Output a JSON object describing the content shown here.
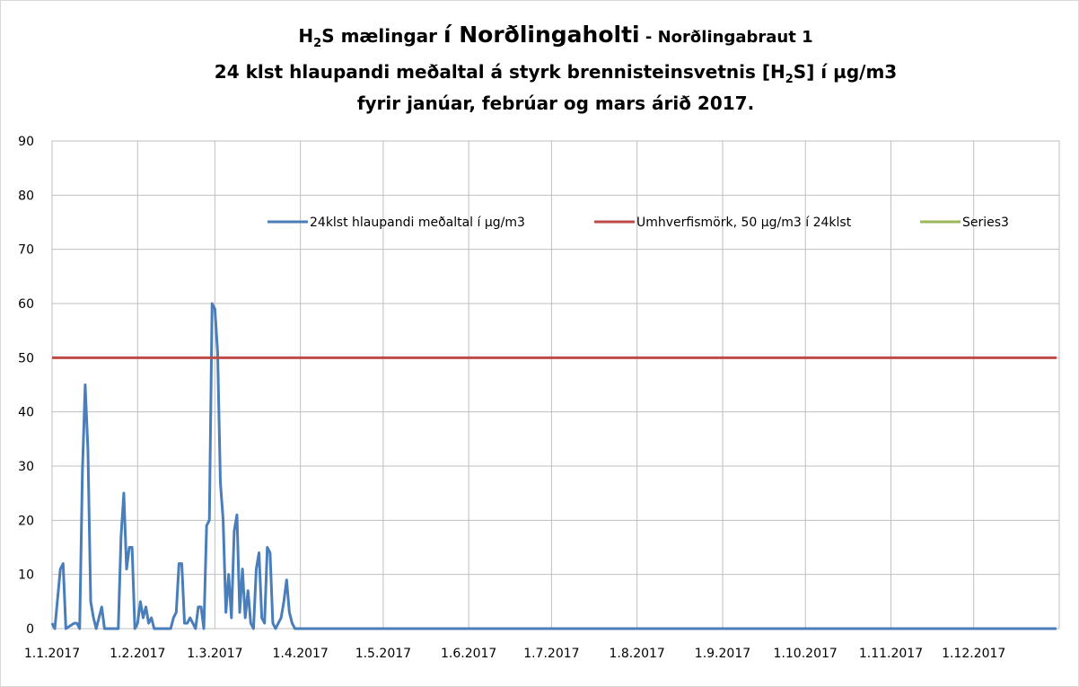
{
  "chart_data": {
    "type": "line",
    "title": [
      [
        {
          "text": "H"
        },
        {
          "text": "2",
          "sub": true
        },
        {
          "text": "S mælingar "
        },
        {
          "text": "í Norðlingaholti"
        },
        {
          "text": " - Norðlingabraut 1"
        }
      ],
      [
        {
          "text": "24 klst hlaupandi meðaltal á styrk brennisteinsvetnis [H"
        },
        {
          "text": "2",
          "sub": true
        },
        {
          "text": "S] í µg/m3"
        }
      ],
      [
        {
          "text": "fyrir janúar, febrúar og mars árið 2017."
        }
      ]
    ],
    "xlim": [
      "1.1.2017",
      "31.12.2017"
    ],
    "xticks": [
      "1.1.2017",
      "1.2.2017",
      "1.3.2017",
      "1.4.2017",
      "1.5.2017",
      "1.6.2017",
      "1.7.2017",
      "1.8.2017",
      "1.9.2017",
      "1.10.2017",
      "1.11.2017",
      "1.12.2017"
    ],
    "ylim": [
      0,
      90
    ],
    "yticks": [
      0,
      10,
      20,
      30,
      40,
      50,
      60,
      70,
      80,
      90
    ],
    "grid": true,
    "legend": "top",
    "series": [
      {
        "name": "24klst hlaupandi meðaltal í µg/m3",
        "color": "#4a7ebb",
        "x": [
          "1.1.2017",
          "2.1.2017",
          "4.1.2017",
          "5.1.2017",
          "6.1.2017",
          "9.1.2017",
          "10.1.2017",
          "11.1.2017",
          "12.1.2017",
          "13.1.2017",
          "14.1.2017",
          "15.1.2017",
          "16.1.2017",
          "17.1.2017",
          "18.1.2017",
          "19.1.2017",
          "20.1.2017",
          "25.1.2017",
          "26.1.2017",
          "27.1.2017",
          "28.1.2017",
          "29.1.2017",
          "30.1.2017",
          "31.1.2017",
          "1.2.2017",
          "2.2.2017",
          "3.2.2017",
          "4.2.2017",
          "5.2.2017",
          "6.2.2017",
          "7.2.2017",
          "13.2.2017",
          "14.2.2017",
          "15.2.2017",
          "16.2.2017",
          "17.2.2017",
          "18.2.2017",
          "19.2.2017",
          "20.2.2017",
          "21.2.2017",
          "22.2.2017",
          "23.2.2017",
          "24.2.2017",
          "25.2.2017",
          "26.2.2017",
          "27.2.2017",
          "28.2.2017",
          "1.3.2017",
          "2.3.2017",
          "3.3.2017",
          "4.3.2017",
          "5.3.2017",
          "6.3.2017",
          "7.3.2017",
          "8.3.2017",
          "9.3.2017",
          "10.3.2017",
          "11.3.2017",
          "12.3.2017",
          "13.3.2017",
          "14.3.2017",
          "15.3.2017",
          "16.3.2017",
          "17.3.2017",
          "18.3.2017",
          "19.3.2017",
          "20.3.2017",
          "21.3.2017",
          "22.3.2017",
          "23.3.2017",
          "24.3.2017",
          "25.3.2017",
          "26.3.2017",
          "27.3.2017",
          "28.3.2017",
          "29.3.2017",
          "30.3.2017",
          "31.3.2017",
          "31.12.2017"
        ],
        "values": [
          1,
          0,
          11,
          12,
          0,
          1,
          1,
          0,
          29,
          45,
          33,
          5,
          2,
          0,
          2,
          4,
          0,
          0,
          17,
          25,
          11,
          15,
          15,
          0,
          1,
          5,
          2,
          4,
          1,
          2,
          0,
          0,
          2,
          3,
          12,
          12,
          1,
          1,
          2,
          1,
          0,
          4,
          4,
          0,
          19,
          20,
          60,
          59,
          51,
          27,
          20,
          3,
          10,
          2,
          18,
          21,
          3,
          11,
          2,
          7,
          1,
          0,
          11,
          14,
          2,
          1,
          15,
          14,
          1,
          0,
          1,
          2,
          5,
          9,
          3,
          1,
          0,
          0,
          0
        ]
      },
      {
        "name": "Umhverfismörk, 50 µg/m3 í 24klst",
        "color": "#be4b48",
        "x": [
          "1.1.2017",
          "31.12.2017"
        ],
        "values": [
          50,
          50
        ]
      },
      {
        "name": "Series3",
        "color": "#98b954",
        "x": [],
        "values": []
      }
    ]
  }
}
